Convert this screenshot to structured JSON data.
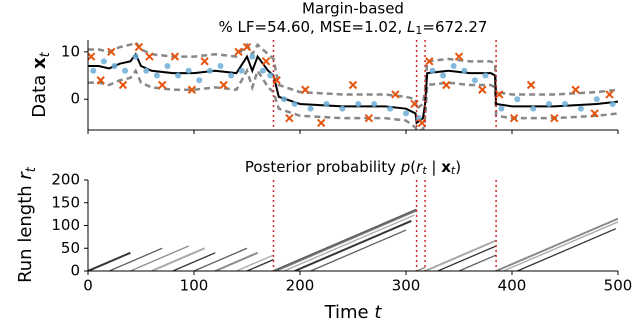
{
  "chart_data": [
    {
      "type": "data",
      "title": "Margin-based",
      "subtitle_parts": [
        "% LF=54.60, MSE=1.02, ",
        "L",
        "1",
        "=672.27"
      ],
      "ylabel_parts": [
        "Data ",
        "x",
        "t"
      ],
      "xlim": [
        0,
        500
      ],
      "xticks": [
        0,
        100,
        200,
        300,
        400,
        500
      ],
      "ylim": [
        -6.5,
        12.5
      ],
      "yticks": [
        0,
        10
      ],
      "x": [
        0,
        10,
        20,
        30,
        40,
        45,
        50,
        60,
        80,
        100,
        120,
        140,
        150,
        155,
        160,
        170,
        175,
        180,
        200,
        240,
        280,
        300,
        309,
        310,
        316,
        318,
        320,
        340,
        360,
        380,
        384,
        385,
        400,
        440,
        480,
        500
      ],
      "series": [
        {
          "color": "#888888",
          "dashed": true,
          "values": [
            10.5,
            10.5,
            10,
            11,
            11.5,
            12,
            10.5,
            9.5,
            9,
            9,
            9.5,
            9,
            11.5,
            9.5,
            11.5,
            9.5,
            8.5,
            3,
            1.5,
            1,
            1,
            0.5,
            0,
            -2,
            -1,
            2,
            8,
            8.5,
            8,
            8,
            7.5,
            1.5,
            1,
            1,
            1.5,
            2
          ]
        },
        {
          "color": "#888888",
          "dashed": true,
          "values": [
            3.5,
            3.5,
            3,
            4,
            4.5,
            6,
            3.5,
            2.5,
            2,
            2,
            2.5,
            2,
            6,
            2.5,
            6,
            2.5,
            1.5,
            -2,
            -3.5,
            -4,
            -4,
            -4.5,
            -6,
            -6.5,
            -6.5,
            -4,
            3,
            3.5,
            3,
            3,
            2.5,
            -3.5,
            -4,
            -4,
            -3.5,
            -3
          ]
        },
        {
          "color": "#000000",
          "dashed": false,
          "values": [
            7,
            7,
            6.5,
            7.5,
            8,
            9.5,
            7,
            6,
            5.5,
            5.5,
            6,
            5.5,
            9,
            6,
            9,
            6,
            5,
            0.5,
            -1,
            -1.5,
            -1.5,
            -2,
            -3,
            -5,
            -4,
            -1,
            5.5,
            6,
            5.5,
            5.5,
            5,
            -1,
            -1.5,
            -1.5,
            -1,
            -0.5
          ]
        }
      ],
      "points": [
        {
          "marker": "dot",
          "color": "#6baed6",
          "x": [
            5,
            15,
            25,
            35,
            45,
            55,
            65,
            75,
            85,
            95,
            105,
            115,
            125,
            135,
            145,
            155,
            165,
            172,
            185,
            195,
            210,
            225,
            240,
            255,
            270,
            285,
            300,
            312,
            325,
            335,
            345,
            355,
            365,
            375,
            390,
            405,
            420,
            435,
            450,
            465,
            480,
            495
          ],
          "y": [
            6,
            8,
            7,
            6,
            9,
            6,
            5,
            7,
            5,
            6,
            4,
            6,
            7,
            5,
            6,
            9,
            6,
            5,
            0,
            -1,
            -2,
            -1,
            -2,
            -1,
            -1,
            -2,
            -3,
            -4,
            6,
            5,
            7,
            6,
            4,
            5,
            -2,
            0,
            -2,
            -1,
            -1,
            -2,
            0,
            -1
          ]
        },
        {
          "marker": "cross",
          "color": "#e6550d",
          "x": [
            3,
            12,
            22,
            33,
            48,
            58,
            70,
            82,
            98,
            110,
            128,
            142,
            150,
            168,
            178,
            190,
            205,
            220,
            250,
            265,
            290,
            308,
            315,
            322,
            338,
            350,
            372,
            388,
            402,
            418,
            440,
            460,
            478,
            492
          ],
          "y": [
            9,
            4,
            10,
            3,
            11,
            9,
            3,
            9,
            2,
            8,
            3,
            10,
            11,
            8,
            4,
            -4,
            2,
            -5,
            3,
            -4,
            1,
            -1,
            -5,
            8,
            3,
            9,
            2,
            1,
            -4,
            3,
            -4,
            2,
            -3,
            1
          ]
        }
      ],
      "changepoints": [
        175,
        310,
        318,
        385
      ],
      "changepoint_color": "#d62728"
    },
    {
      "type": "runlength",
      "title_parts": [
        "Posterior probability ",
        "p",
        "(",
        "r",
        "t",
        " | ",
        "x",
        "t",
        ")"
      ],
      "ylabel_parts": [
        "Run length ",
        "r",
        "t"
      ],
      "xlabel_parts": [
        "Time ",
        "t"
      ],
      "xlim": [
        0,
        500
      ],
      "xticks": [
        0,
        100,
        200,
        300,
        400,
        500
      ],
      "ylim": [
        0,
        200
      ],
      "yticks": [
        0,
        50,
        100,
        150,
        200
      ],
      "run_starts": [
        0,
        20,
        40,
        60,
        80,
        100,
        120,
        140,
        150,
        175,
        178,
        185,
        195,
        210,
        310,
        318,
        330,
        350,
        385,
        392,
        405
      ],
      "run_ends": [
        40,
        70,
        95,
        110,
        120,
        150,
        160,
        175,
        175,
        310,
        310,
        308,
        305,
        300,
        318,
        385,
        385,
        385,
        500,
        500,
        498
      ],
      "changepoints": [
        175,
        310,
        318,
        385
      ],
      "changepoint_color": "#d62728"
    }
  ]
}
